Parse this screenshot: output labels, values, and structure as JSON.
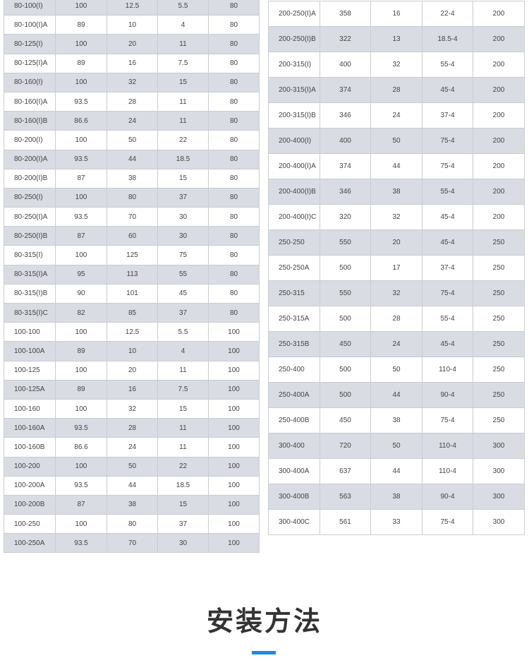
{
  "left_table": {
    "rows": [
      [
        "80-100(I)",
        "100",
        "12.5",
        "5.5",
        "80"
      ],
      [
        "80-100(I)A",
        "89",
        "10",
        "4",
        "80"
      ],
      [
        "80-125(I)",
        "100",
        "20",
        "11",
        "80"
      ],
      [
        "80-125(I)A",
        "89",
        "16",
        "7.5",
        "80"
      ],
      [
        "80-160(I)",
        "100",
        "32",
        "15",
        "80"
      ],
      [
        "80-160(I)A",
        "93.5",
        "28",
        "11",
        "80"
      ],
      [
        "80-160(I)B",
        "86.6",
        "24",
        "11",
        "80"
      ],
      [
        "80-200(I)",
        "100",
        "50",
        "22",
        "80"
      ],
      [
        "80-200(I)A",
        "93.5",
        "44",
        "18.5",
        "80"
      ],
      [
        "80-200(I)B",
        "87",
        "38",
        "15",
        "80"
      ],
      [
        "80-250(I)",
        "100",
        "80",
        "37",
        "80"
      ],
      [
        "80-250(I)A",
        "93.5",
        "70",
        "30",
        "80"
      ],
      [
        "80-250(I)B",
        "87",
        "60",
        "30",
        "80"
      ],
      [
        "80-315(I)",
        "100",
        "125",
        "75",
        "80"
      ],
      [
        "80-315(I)A",
        "95",
        "113",
        "55",
        "80"
      ],
      [
        "80-315(I)B",
        "90",
        "101",
        "45",
        "80"
      ],
      [
        "80-315(I)C",
        "82",
        "85",
        "37",
        "80"
      ],
      [
        "100-100",
        "100",
        "12.5",
        "5.5",
        "100"
      ],
      [
        "100-100A",
        "89",
        "10",
        "4",
        "100"
      ],
      [
        "100-125",
        "100",
        "20",
        "11",
        "100"
      ],
      [
        "100-125A",
        "89",
        "16",
        "7.5",
        "100"
      ],
      [
        "100-160",
        "100",
        "32",
        "15",
        "100"
      ],
      [
        "100-160A",
        "93.5",
        "28",
        "11",
        "100"
      ],
      [
        "100-160B",
        "86.6",
        "24",
        "11",
        "100"
      ],
      [
        "100-200",
        "100",
        "50",
        "22",
        "100"
      ],
      [
        "100-200A",
        "93.5",
        "44",
        "18.5",
        "100"
      ],
      [
        "100-200B",
        "87",
        "38",
        "15",
        "100"
      ],
      [
        "100-250",
        "100",
        "80",
        "37",
        "100"
      ],
      [
        "100-250A",
        "93.5",
        "70",
        "30",
        "100"
      ]
    ]
  },
  "right_table": {
    "rows": [
      [
        "200-250(I)A",
        "358",
        "16",
        "22-4",
        "200"
      ],
      [
        "200-250(I)B",
        "322",
        "13",
        "18.5-4",
        "200"
      ],
      [
        "200-315(I)",
        "400",
        "32",
        "55-4",
        "200"
      ],
      [
        "200-315(I)A",
        "374",
        "28",
        "45-4",
        "200"
      ],
      [
        "200-315(I)B",
        "346",
        "24",
        "37-4",
        "200"
      ],
      [
        "200-400(I)",
        "400",
        "50",
        "75-4",
        "200"
      ],
      [
        "200-400(I)A",
        "374",
        "44",
        "75-4",
        "200"
      ],
      [
        "200-400(I)B",
        "346",
        "38",
        "55-4",
        "200"
      ],
      [
        "200-400(I)C",
        "320",
        "32",
        "45-4",
        "200"
      ],
      [
        "250-250",
        "550",
        "20",
        "45-4",
        "250"
      ],
      [
        "250-250A",
        "500",
        "17",
        "37-4",
        "250"
      ],
      [
        "250-315",
        "550",
        "32",
        "75-4",
        "250"
      ],
      [
        "250-315A",
        "500",
        "28",
        "55-4",
        "250"
      ],
      [
        "250-315B",
        "450",
        "24",
        "45-4",
        "250"
      ],
      [
        "250-400",
        "500",
        "50",
        "110-4",
        "250"
      ],
      [
        "250-400A",
        "500",
        "44",
        "90-4",
        "250"
      ],
      [
        "250-400B",
        "450",
        "38",
        "75-4",
        "250"
      ],
      [
        "300-400",
        "720",
        "50",
        "110-4",
        "300"
      ],
      [
        "300-400A",
        "637",
        "44",
        "110-4",
        "300"
      ],
      [
        "300-400B",
        "563",
        "38",
        "90-4",
        "300"
      ],
      [
        "300-400C",
        "561",
        "33",
        "75-4",
        "300"
      ]
    ]
  },
  "section": {
    "title": "安装方法"
  },
  "colors": {
    "row_shade": "#d9dce2",
    "row_plain": "#ffffff",
    "border": "#c9ccd2",
    "accent": "#1b8be0",
    "title_text": "#333333"
  }
}
